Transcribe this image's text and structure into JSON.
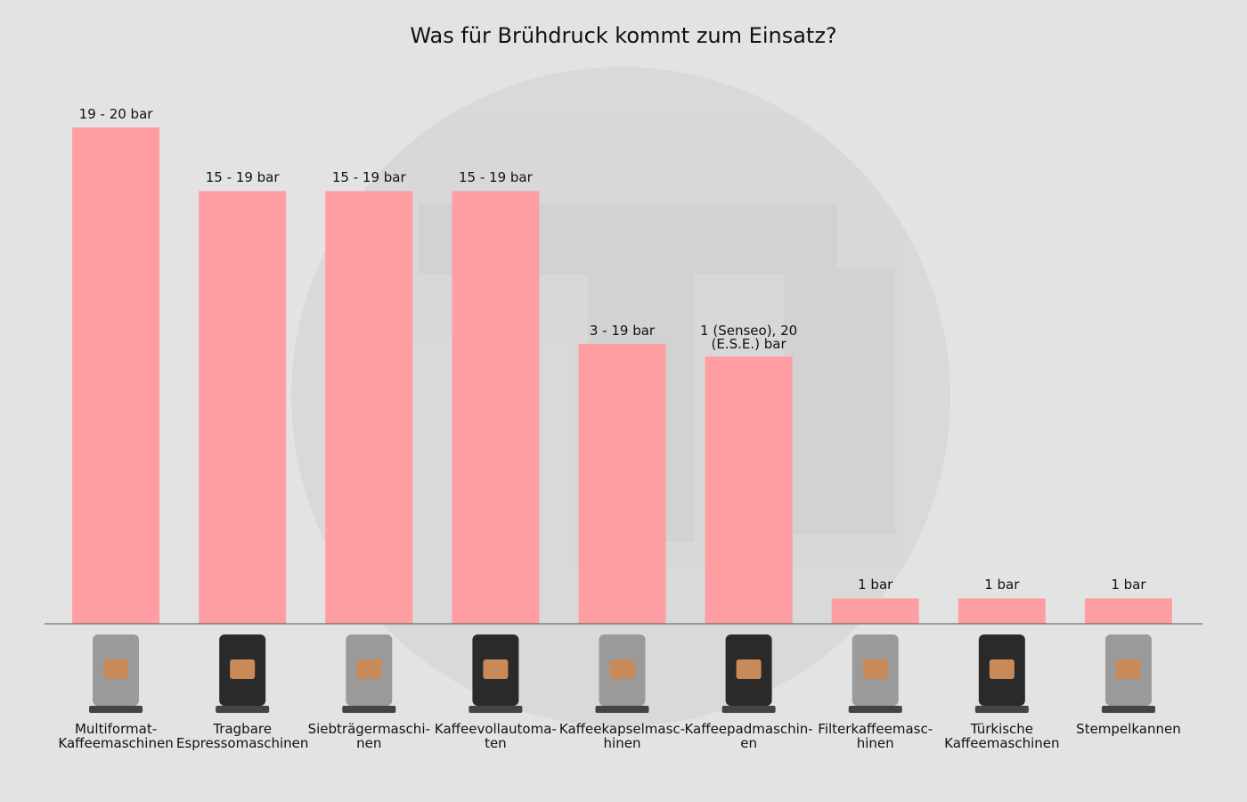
{
  "chart_data": {
    "type": "bar",
    "title": "Was für Brühdruck kommt zum Einsatz?",
    "categories": [
      "Multiformat-\nKaffeemaschinen",
      "Tragbare\nEspressomaschinen",
      "Siebträgermaschi-\nnen",
      "Kaffeevollautoma-\nten",
      "Kaffeekapselmasc-\nhinen",
      "Kaffeepadmaschin-\nen",
      "Filterkaffeemasc-\nhinen",
      "Türkische\nKaffeemaschinen",
      "Stempelkannen"
    ],
    "values": [
      19.5,
      17,
      17,
      17,
      11,
      10.5,
      1,
      1,
      1
    ],
    "value_labels": [
      "19 - 20 bar",
      "15 - 19 bar",
      "15 - 19 bar",
      "15 - 19 bar",
      "3 - 19 bar",
      "1 (Senseo), 20\n(E.S.E.) bar",
      "1 bar",
      "1 bar",
      "1 bar"
    ],
    "color": "#ff9ea2"
  }
}
